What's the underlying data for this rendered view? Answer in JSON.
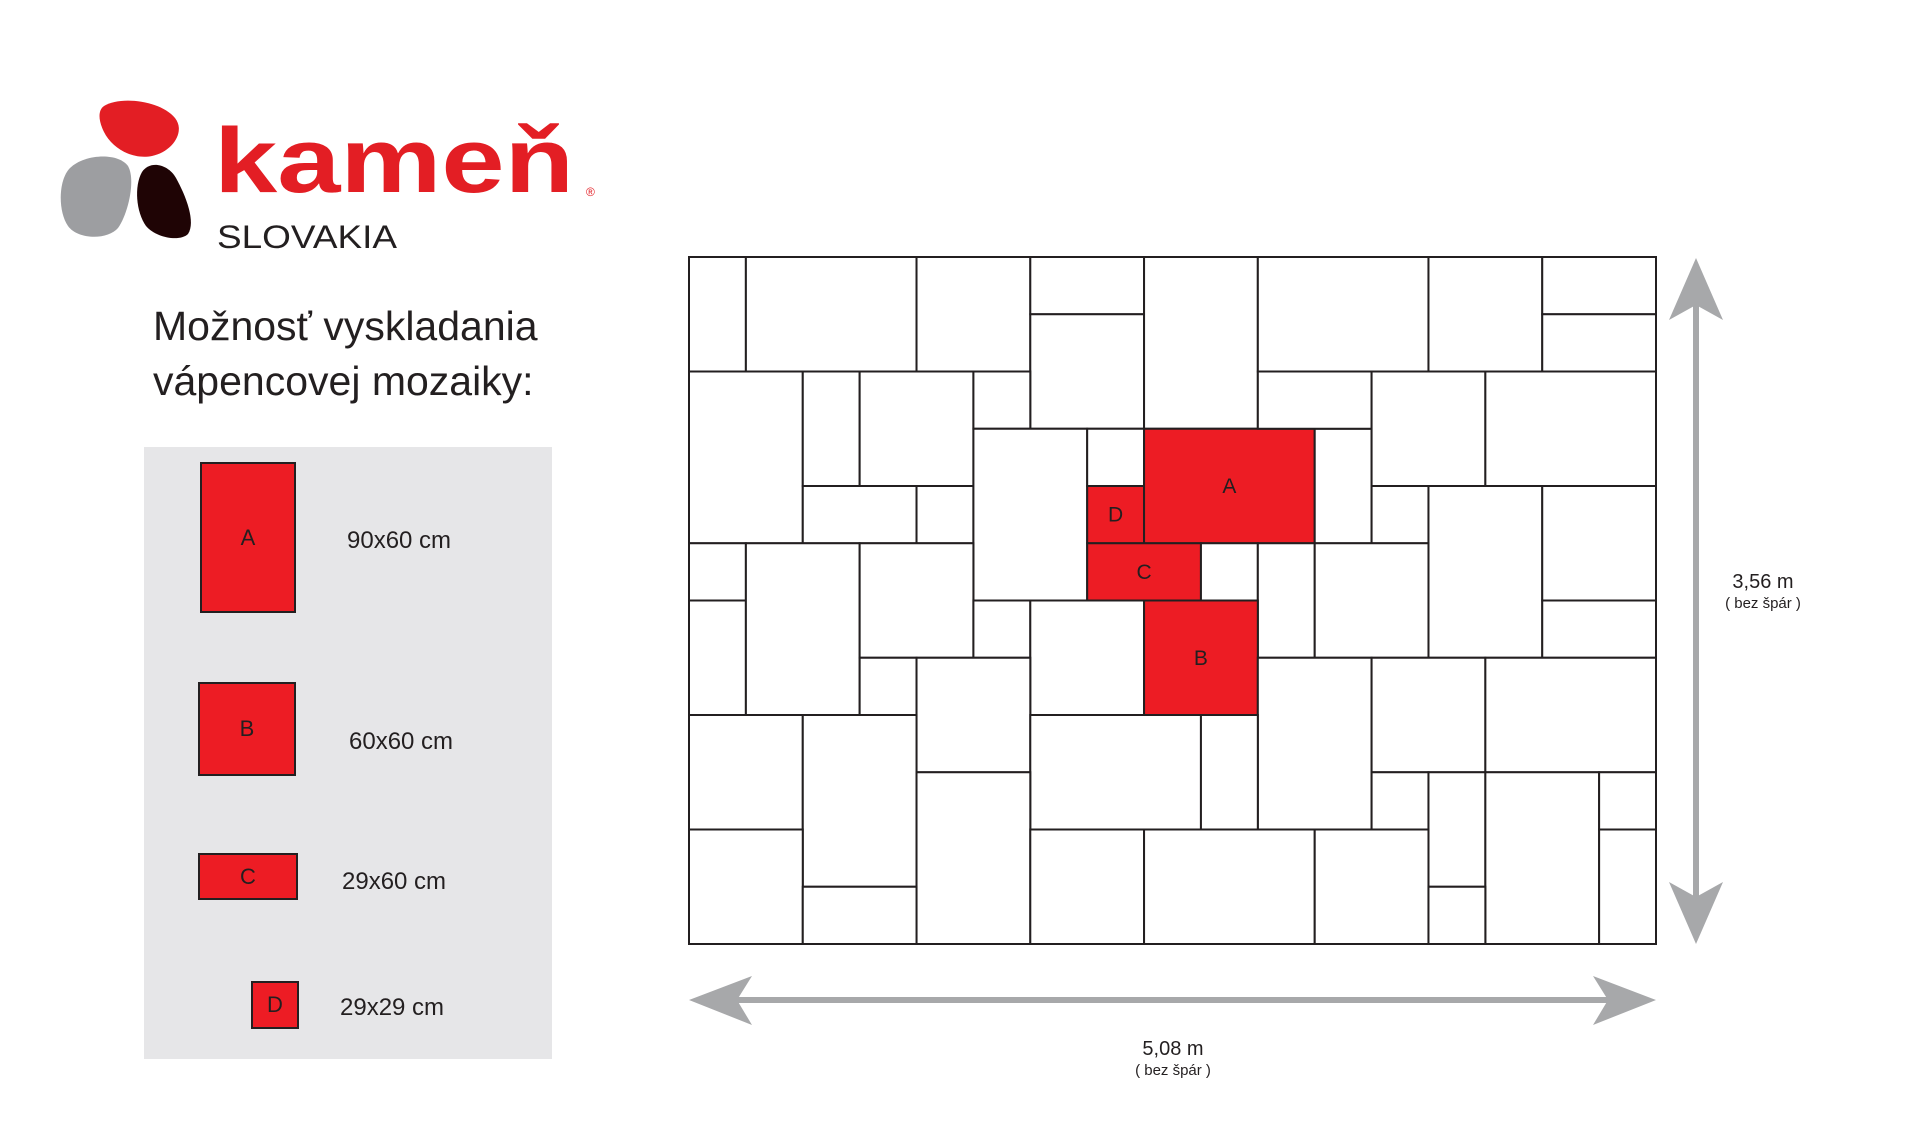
{
  "logo": {
    "brand": "kameň",
    "subtitle": "SLOVAKIA",
    "registered": "®",
    "colors": {
      "red": "#e31e24",
      "grey": "#9d9ea1",
      "dark": "#1f0405"
    }
  },
  "heading": {
    "line1": "Možnosť vyskladania",
    "line2": "vápencovej mozaiky:"
  },
  "legend": [
    {
      "letter": "A",
      "size": "90x60 cm"
    },
    {
      "letter": "B",
      "size": "60x60 cm"
    },
    {
      "letter": "C",
      "size": "29x60 cm"
    },
    {
      "letter": "D",
      "size": "29x29 cm"
    }
  ],
  "dimensions": {
    "height": {
      "value": "3,56 m",
      "note": "( bez špár )"
    },
    "width": {
      "value": "5,08 m",
      "note": "( bez špár )"
    }
  },
  "colors": {
    "tile_highlight": "#ed1c24",
    "legend_bg": "#e6e6e8",
    "arrow": "#a7a8aa",
    "outline": "#231f20"
  }
}
